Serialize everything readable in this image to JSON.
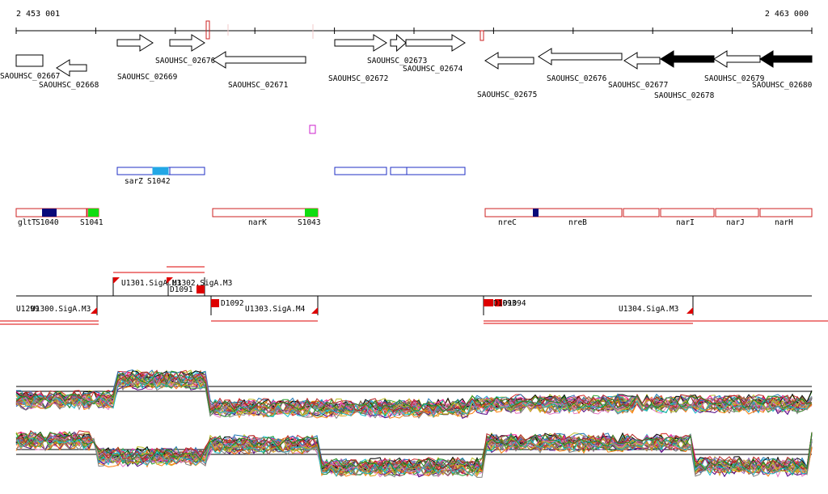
{
  "ruler": {
    "start_label": "2 453 001",
    "end_label": "2 463 000"
  },
  "colors": {
    "gene_outline": "#000000",
    "gene_filled": "#000000",
    "srna_box": "#1f2fc4",
    "srna_fill": "#22a7e6",
    "operon_box": "#cc2222",
    "navy_mark": "#0a0a7a",
    "green_mark": "#11dd11",
    "transcript_red": "#dd0000",
    "magenta_mark": "#cc22cc"
  },
  "genes": [
    {
      "label": "SAOUHSC_02667",
      "strand": "+",
      "filled": false
    },
    {
      "label": "SAOUHSC_02668",
      "strand": "-",
      "filled": false
    },
    {
      "label": "SAOUHSC_02669",
      "strand": "+",
      "filled": false
    },
    {
      "label": "SAOUHSC_02670",
      "strand": "+",
      "filled": false
    },
    {
      "label": "SAOUHSC_02671",
      "strand": "-",
      "filled": false
    },
    {
      "label": "SAOUHSC_02672",
      "strand": "+",
      "filled": false
    },
    {
      "label": "SAOUHSC_02673",
      "strand": "+",
      "filled": false
    },
    {
      "label": "SAOUHSC_02674",
      "strand": "+",
      "filled": false
    },
    {
      "label": "SAOUHSC_02675",
      "strand": "-",
      "filled": false
    },
    {
      "label": "SAOUHSC_02676",
      "strand": "-",
      "filled": false
    },
    {
      "label": "SAOUHSC_02677",
      "strand": "-",
      "filled": false
    },
    {
      "label": "SAOUHSC_02678",
      "strand": "-",
      "filled": true
    },
    {
      "label": "SAOUHSC_02679",
      "strand": "-",
      "filled": false
    },
    {
      "label": "SAOUHSC_02680",
      "strand": "-",
      "filled": true
    }
  ],
  "srna_labels": [
    "sarZ",
    "S1042"
  ],
  "operon_labels": [
    "gltT",
    "S1040",
    "S1041",
    "narK",
    "S1043",
    "nreC",
    "nreB",
    "narI",
    "narJ",
    "narH"
  ],
  "transcript_labels": [
    "U1301.SigA.M3",
    "U1302.SigA.M3",
    "D1091",
    "U1299",
    "U1300.SigA.M3",
    "D1092",
    "U1303.SigA.M4",
    "D1093",
    "D1094",
    "U1304.SigA.M3"
  ],
  "expression_panels": [
    {
      "series_count": 30
    },
    {
      "series_count": 30
    }
  ]
}
